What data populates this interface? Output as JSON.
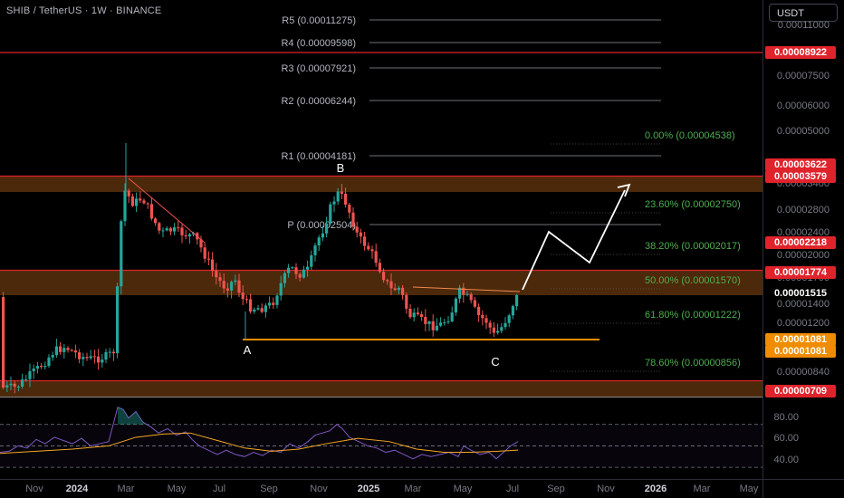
{
  "header": {
    "title": "SHIB / TetherUS · 1W · BINANCE",
    "currency_button": "USDT"
  },
  "chart_data": {
    "type": "candlestick",
    "symbol": "SHIB / TetherUS",
    "interval": "1W",
    "exchange": "BINANCE",
    "y_axis_labels": [
      "0.00011000",
      "0.00007500",
      "0.00006000",
      "0.00005000",
      "0.00003400",
      "0.00002800",
      "0.00002400",
      "0.00002000",
      "0.00001700",
      "0.00001400",
      "0.00001200",
      "0.00000840"
    ],
    "x_axis_labels": [
      {
        "label": "Nov",
        "bold": false
      },
      {
        "label": "2024",
        "bold": true
      },
      {
        "label": "Mar",
        "bold": false
      },
      {
        "label": "May",
        "bold": false
      },
      {
        "label": "Jul",
        "bold": false
      },
      {
        "label": "Sep",
        "bold": false
      },
      {
        "label": "Nov",
        "bold": false
      },
      {
        "label": "2025",
        "bold": true
      },
      {
        "label": "Mar",
        "bold": false
      },
      {
        "label": "May",
        "bold": false
      },
      {
        "label": "Jul",
        "bold": false
      },
      {
        "label": "Sep",
        "bold": false
      },
      {
        "label": "Nov",
        "bold": false
      },
      {
        "label": "2026",
        "bold": true
      },
      {
        "label": "Mar",
        "bold": false
      },
      {
        "label": "May",
        "bold": false
      }
    ],
    "price_badges": [
      {
        "value": "0.00008922",
        "style": "red"
      },
      {
        "value": "0.00003622",
        "style": "red"
      },
      {
        "value": "0.00003579",
        "style": "red"
      },
      {
        "value": "0.00002218",
        "style": "red"
      },
      {
        "value": "0.00001774",
        "style": "red"
      },
      {
        "value": "0.00001515",
        "style": "plain"
      },
      {
        "value": "0.00001081",
        "style": "orange"
      },
      {
        "value": "0.00001081",
        "style": "orange"
      },
      {
        "value": "0.00000709",
        "style": "red"
      }
    ],
    "pivot_levels": [
      {
        "label": "R5 (0.00011275)",
        "value": 0.00011275
      },
      {
        "label": "R4 (0.00009598)",
        "value": 9.598e-05
      },
      {
        "label": "R3 (0.00007921)",
        "value": 7.921e-05
      },
      {
        "label": "R2 (0.00006244)",
        "value": 6.244e-05
      },
      {
        "label": "R1 (0.00004181)",
        "value": 4.181e-05
      },
      {
        "label": "P (0.00002504)",
        "value": 2.504e-05
      }
    ],
    "fib_levels": [
      {
        "label": "0.00% (0.00004538)",
        "value": 4.538e-05
      },
      {
        "label": "23.60% (0.00002750)",
        "value": 2.75e-05
      },
      {
        "label": "38.20% (0.00002017)",
        "value": 2.017e-05
      },
      {
        "label": "50.00% (0.00001570)",
        "value": 1.57e-05
      },
      {
        "label": "61.80% (0.00001222)",
        "value": 1.222e-05
      },
      {
        "label": "78.60% (0.00000856)",
        "value": 8.56e-06
      }
    ],
    "horizontal_lines": [
      {
        "value": 8.922e-05,
        "color": "#e0232b"
      }
    ],
    "zones": [
      {
        "top": 3.622e-05,
        "bottom": 3.579e-05,
        "color": "#e0232b"
      },
      {
        "top": 1.774e-05,
        "bottom": 1.57e-05,
        "color": "#e0232b"
      },
      {
        "top": 7.5e-06,
        "bottom": 7.09e-06,
        "color": "#e0232b"
      }
    ],
    "wave_labels": [
      "A",
      "B",
      "C"
    ],
    "support_level": 1.081e-05,
    "rsi": {
      "levels": [
        "80.00",
        "60.00",
        "40.00"
      ],
      "upper": 70,
      "middle": 50,
      "lower": 30,
      "rsi_color": "#7e57c2",
      "ma_color": "#f5a623"
    },
    "colors": {
      "up": "#26a69a",
      "down": "#ef5350",
      "background": "#000000",
      "support": "#f08c00",
      "fib": "#4caf50"
    }
  }
}
